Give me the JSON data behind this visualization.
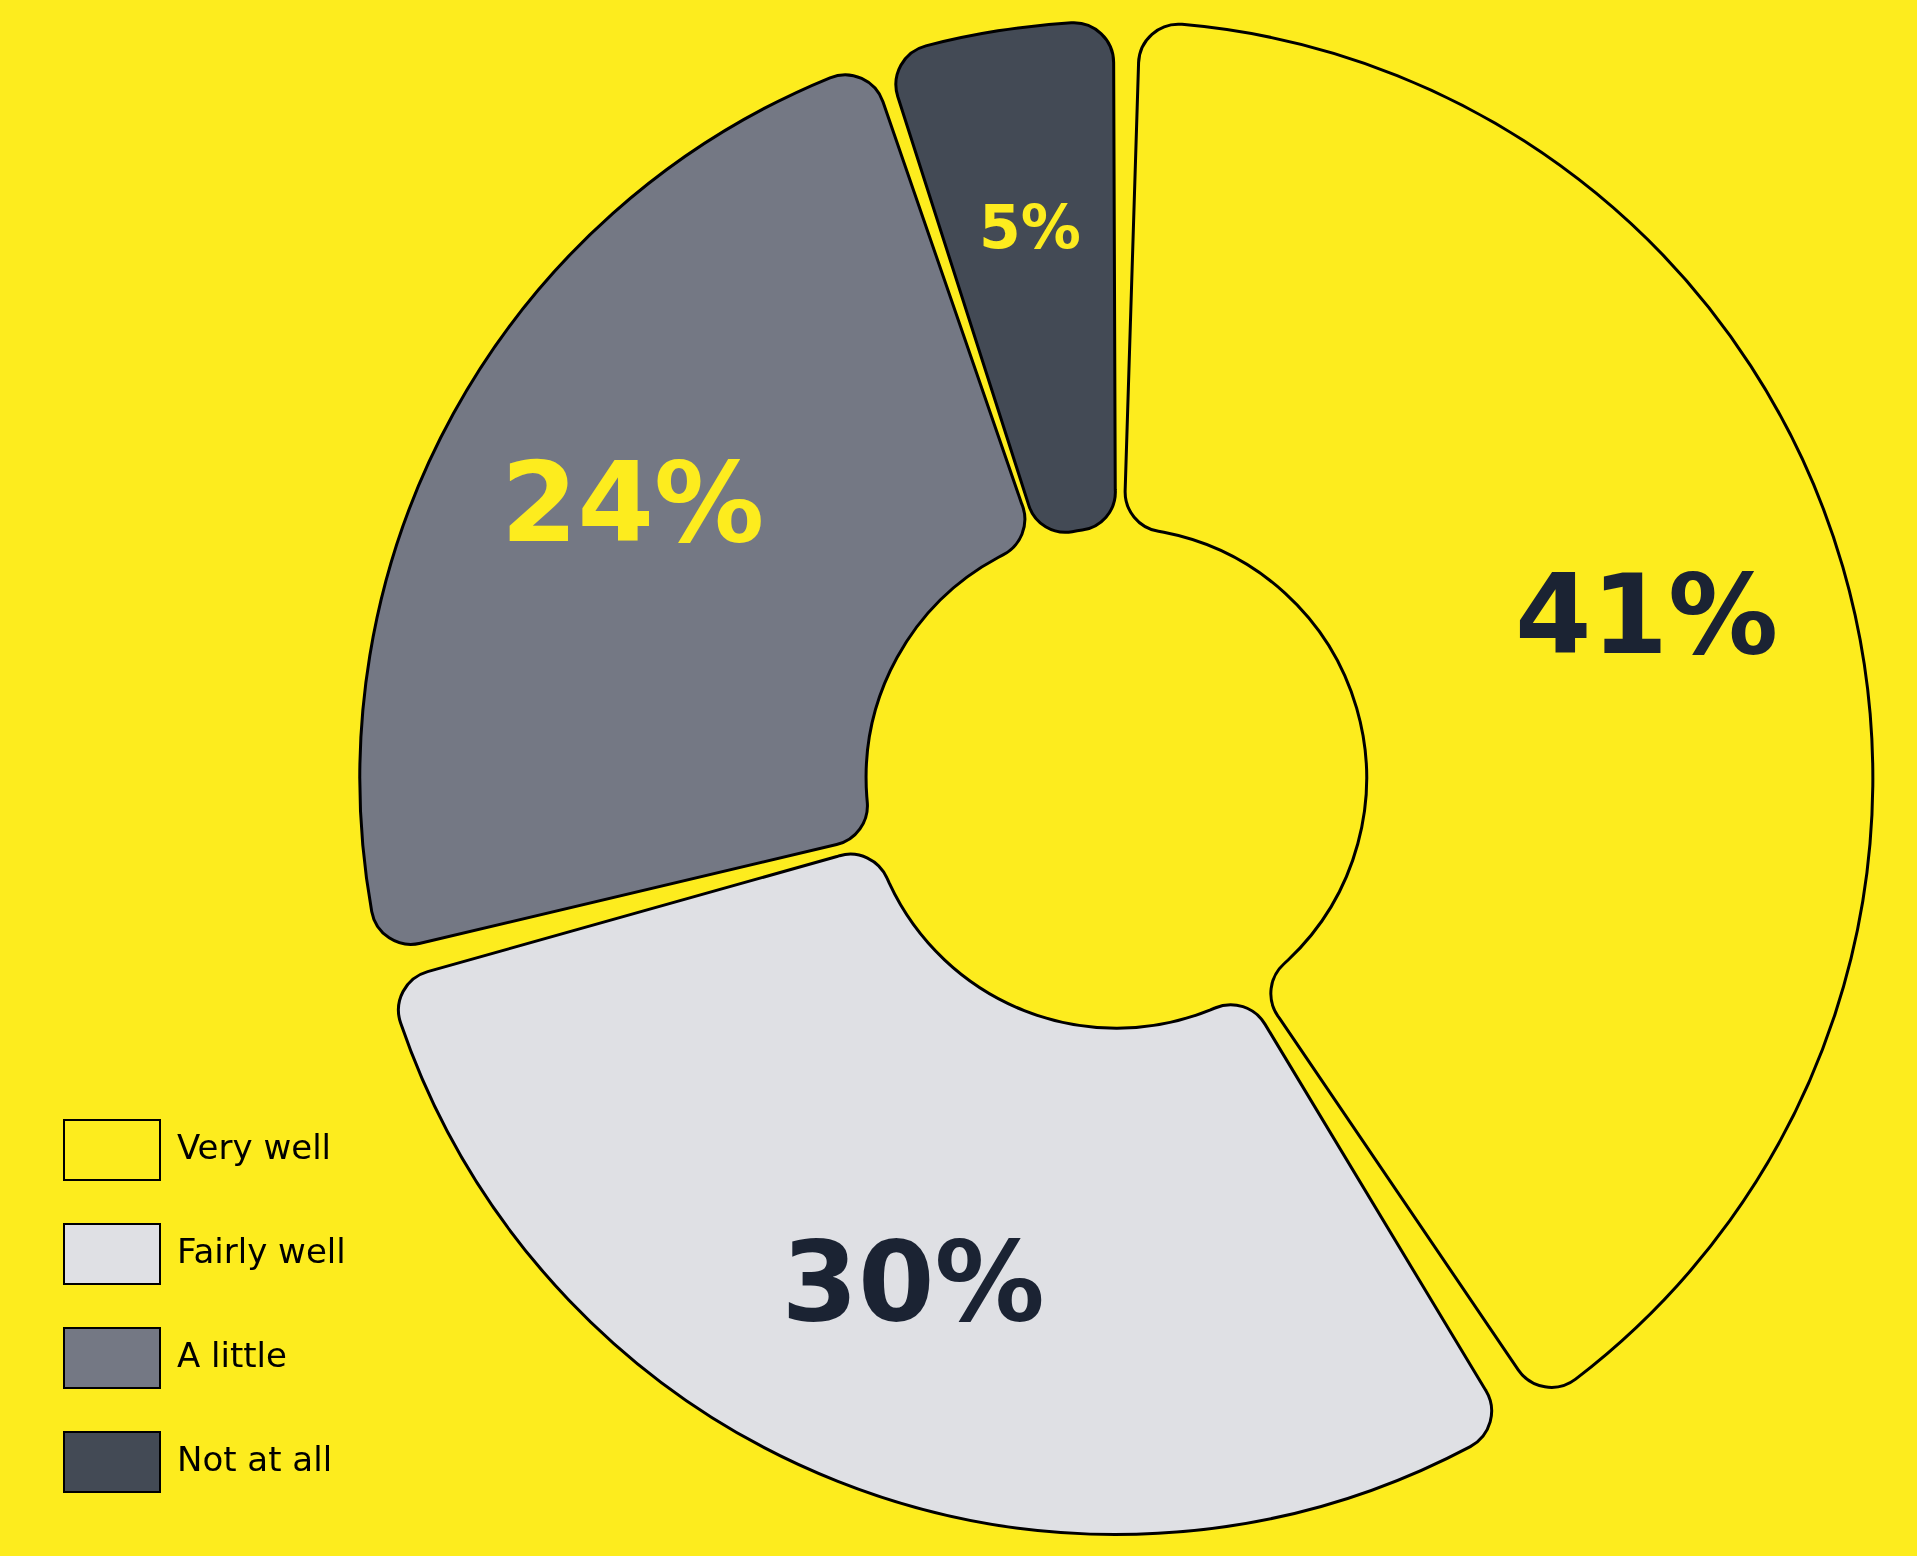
{
  "chart_data": {
    "type": "donut",
    "categories": [
      "Very well",
      "Fairly well",
      "A little",
      "Not at all"
    ],
    "values": [
      41,
      30,
      24,
      5
    ],
    "colors": [
      "#fdec1e",
      "#dfe0e4",
      "#747884",
      "#434a55"
    ],
    "value_labels": [
      "41%",
      "30%",
      "24%",
      "5%"
    ],
    "legend": "bottom left"
  }
}
